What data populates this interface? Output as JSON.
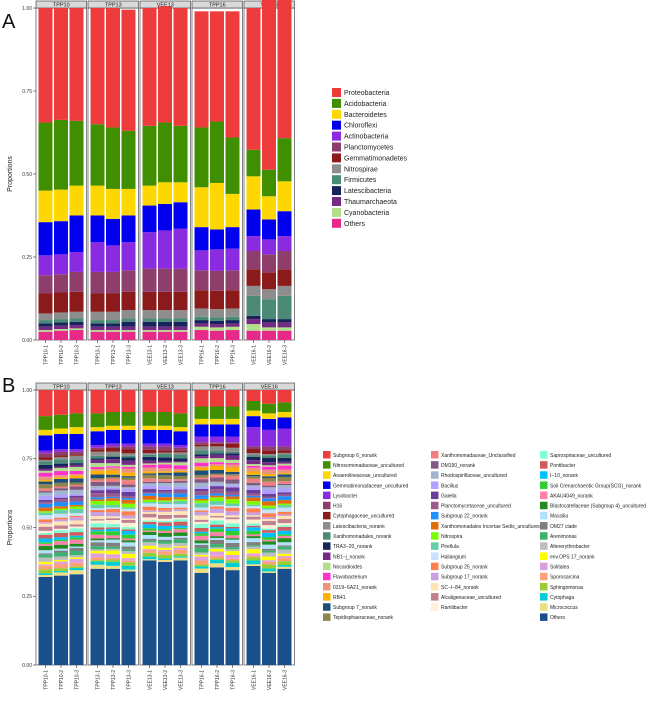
{
  "chart_data": [
    {
      "panel": "A",
      "type": "bar",
      "stacked": true,
      "facets": [
        "TPP10",
        "TPP13",
        "VEE13",
        "TPP16",
        "VEE16"
      ],
      "samples": [
        [
          "TPP10-1",
          "TPP10-2",
          "TPP10-3"
        ],
        [
          "TPP13-1",
          "TPP13-2",
          "TPP13-3"
        ],
        [
          "VEE13-1",
          "VEE13-2",
          "VEE13-3"
        ],
        [
          "TPP16-1",
          "TPP16-2",
          "TPP16-3"
        ],
        [
          "VEE16-1",
          "VEE16-2",
          "VEE16-3"
        ]
      ],
      "ylabel": "Proportions",
      "ylim": [
        0,
        1
      ],
      "yticks": [
        "0.00",
        "0.25",
        "0.50",
        "0.75",
        "1.00"
      ],
      "legend_position": "right",
      "series": [
        {
          "name": "Others",
          "color": "#e7298a",
          "values": [
            0.025,
            0.028,
            0.03,
            0.025,
            0.025,
            0.025,
            0.025,
            0.025,
            0.025,
            0.03,
            0.028,
            0.03,
            0.028,
            0.028,
            0.028
          ]
        },
        {
          "name": "Cyanobacteria",
          "color": "#b2df8a",
          "values": [
            0.005,
            0.005,
            0.005,
            0.005,
            0.005,
            0.005,
            0.005,
            0.005,
            0.005,
            0.01,
            0.01,
            0.01,
            0.02,
            0.01,
            0.01
          ]
        },
        {
          "name": "Thaumarchaeota",
          "color": "#762a83",
          "values": [
            0.01,
            0.01,
            0.01,
            0.01,
            0.01,
            0.01,
            0.01,
            0.01,
            0.01,
            0.01,
            0.01,
            0.01,
            0.015,
            0.015,
            0.015
          ]
        },
        {
          "name": "Latescibacteria",
          "color": "#17245c",
          "values": [
            0.01,
            0.01,
            0.01,
            0.01,
            0.01,
            0.015,
            0.015,
            0.015,
            0.015,
            0.01,
            0.01,
            0.01,
            0.01,
            0.01,
            0.01
          ]
        },
        {
          "name": "Firmicutes",
          "color": "#4b8a76",
          "values": [
            0.01,
            0.01,
            0.01,
            0.01,
            0.01,
            0.01,
            0.01,
            0.01,
            0.01,
            0.01,
            0.01,
            0.01,
            0.06,
            0.06,
            0.07
          ]
        },
        {
          "name": "Nitrospirae",
          "color": "#8d8d8d",
          "values": [
            0.02,
            0.02,
            0.02,
            0.025,
            0.025,
            0.025,
            0.025,
            0.025,
            0.025,
            0.025,
            0.025,
            0.025,
            0.03,
            0.03,
            0.03
          ]
        },
        {
          "name": "Gemmatimonadetes",
          "color": "#8b1a1a",
          "values": [
            0.06,
            0.06,
            0.06,
            0.055,
            0.055,
            0.055,
            0.055,
            0.055,
            0.055,
            0.055,
            0.055,
            0.055,
            0.05,
            0.05,
            0.05
          ]
        },
        {
          "name": "Planctomycetes",
          "color": "#8e3e6a",
          "values": [
            0.055,
            0.055,
            0.06,
            0.065,
            0.065,
            0.065,
            0.07,
            0.07,
            0.07,
            0.06,
            0.06,
            0.06,
            0.055,
            0.055,
            0.055
          ]
        },
        {
          "name": "Actinobacteria",
          "color": "#8a2be2",
          "values": [
            0.06,
            0.06,
            0.06,
            0.09,
            0.08,
            0.085,
            0.11,
            0.115,
            0.12,
            0.06,
            0.065,
            0.065,
            0.045,
            0.045,
            0.045
          ]
        },
        {
          "name": "Chloroflexi",
          "color": "#0000ee",
          "values": [
            0.1,
            0.1,
            0.11,
            0.08,
            0.08,
            0.08,
            0.08,
            0.08,
            0.08,
            0.07,
            0.06,
            0.065,
            0.08,
            0.06,
            0.075
          ]
        },
        {
          "name": "Bacteroidetes",
          "color": "#ffd700",
          "values": [
            0.095,
            0.095,
            0.09,
            0.09,
            0.09,
            0.08,
            0.06,
            0.065,
            0.06,
            0.12,
            0.14,
            0.1,
            0.1,
            0.07,
            0.09
          ]
        },
        {
          "name": "Acidobacteria",
          "color": "#3f8f00",
          "values": [
            0.205,
            0.21,
            0.195,
            0.185,
            0.185,
            0.175,
            0.18,
            0.18,
            0.17,
            0.18,
            0.185,
            0.17,
            0.08,
            0.08,
            0.13
          ]
        },
        {
          "name": "Proteobacteria",
          "color": "#ee3b3b",
          "values": [
            0.345,
            0.337,
            0.34,
            0.35,
            0.36,
            0.365,
            0.355,
            0.35,
            0.355,
            0.35,
            0.332,
            0.38,
            0.427,
            0.537,
            0.422
          ]
        }
      ],
      "legend_order": [
        "Proteobacteria",
        "Acidobacteria",
        "Bacteroidetes",
        "Chloroflexi",
        "Actinobacteria",
        "Planctomycetes",
        "Gemmatimonadetes",
        "Nitrospirae",
        "Firmicutes",
        "Latescibacteria",
        "Thaumarchaeota",
        "Cyanobacteria",
        "Others"
      ]
    },
    {
      "panel": "B",
      "type": "bar",
      "stacked": true,
      "facets": [
        "TPP10",
        "TPP13",
        "VEE13",
        "TPP16",
        "VEE16"
      ],
      "samples": [
        [
          "TPP10-1",
          "TPP10-2",
          "TPP10-3"
        ],
        [
          "TPP13-1",
          "TPP13-2",
          "TPP13-3"
        ],
        [
          "VEE13-1",
          "VEE13-2",
          "VEE13-3"
        ],
        [
          "TPP16-1",
          "TPP16-2",
          "TPP16-3"
        ],
        [
          "VEE16-1",
          "VEE16-2",
          "VEE16-3"
        ]
      ],
      "ylabel": "Proportions",
      "ylim": [
        0,
        1
      ],
      "yticks": [
        "0.00",
        "0.25",
        "0.50",
        "0.75",
        "1.00"
      ],
      "legend_position": "right",
      "others_values": [
        0.32,
        0.325,
        0.33,
        0.35,
        0.35,
        0.34,
        0.38,
        0.375,
        0.38,
        0.335,
        0.355,
        0.345,
        0.36,
        0.335,
        0.35
      ],
      "top_series": [
        {
          "name": "Subgroup 6_norank",
          "color": "#ee3b3b",
          "values": [
            0.095,
            0.09,
            0.085,
            0.085,
            0.08,
            0.08,
            0.08,
            0.08,
            0.085,
            0.06,
            0.06,
            0.06,
            0.04,
            0.05,
            0.045
          ]
        },
        {
          "name": "Nitrosomonadaceae_uncultured",
          "color": "#3f8f00",
          "values": [
            0.05,
            0.05,
            0.05,
            0.05,
            0.05,
            0.05,
            0.05,
            0.05,
            0.05,
            0.045,
            0.045,
            0.045,
            0.035,
            0.035,
            0.035
          ]
        },
        {
          "name": "Anaerolineaceae_uncultured",
          "color": "#ffd700",
          "values": [
            0.02,
            0.02,
            0.025,
            0.015,
            0.015,
            0.015,
            0.015,
            0.015,
            0.015,
            0.02,
            0.02,
            0.02,
            0.02,
            0.02,
            0.02
          ]
        },
        {
          "name": "Gemmatimonadaceae_uncultured",
          "color": "#0000ee",
          "values": [
            0.055,
            0.055,
            0.055,
            0.05,
            0.05,
            0.05,
            0.05,
            0.05,
            0.05,
            0.045,
            0.045,
            0.045,
            0.04,
            0.04,
            0.04
          ]
        },
        {
          "name": "Lysobacter",
          "color": "#8a2be2",
          "values": [
            0.01,
            0.01,
            0.01,
            0.01,
            0.01,
            0.01,
            0.01,
            0.01,
            0.01,
            0.02,
            0.02,
            0.02,
            0.07,
            0.06,
            0.065
          ]
        }
      ],
      "legend_order": [
        "Subgroup 6_norank",
        "Nitrosomonadaceae_uncultured",
        "Anaerolineaceae_uncultured",
        "Gemmatimonadaceae_uncultured",
        "Lysobacter",
        "H16",
        "Cytophagaceae_uncultured",
        "Latescibacteria_norank",
        "Xanthomonadales_norank",
        "TRA3−20_norank",
        "NB1−j_norank",
        "Nocardioides",
        "Flavobacterium",
        "0319−6A21_norank",
        "RB41",
        "Subgroup 7_norank",
        "Tepidisphaeraceae_norank",
        "Xanthomonadaceae_Unclassified",
        "DM190_norank",
        "Rhodospirillaceae_uncultured",
        "Bacillus",
        "Gaiella",
        "Planctomycetaceae_uncultured",
        "Subgroup 22_norank",
        "Xanthomonadales Incertae Sedis_uncultured",
        "Nitrospira",
        "Pirellula",
        "Haliangium",
        "Subgroup 25_norank",
        "Subgroup 17_norank",
        "SC−I−84_norank",
        "Alcaligenaceae_uncultured",
        "Ramlibacter",
        "Saprospiraceae_uncultured",
        "Pontibacter",
        "I−10_norank",
        "Soil Crenarchaeotic Group(SCG)_norank",
        "AKAU4049_norank",
        "Blastocatellaceae (Subgroup 4)_uncultured",
        "Massilia",
        "OM27 clade",
        "Arenimonas",
        "Altererythrobacter",
        "env.OPS 17_norank",
        "Solitalea",
        "Sporosarcina",
        "Sphingomonas",
        "Cytophaga",
        "Micrococcus",
        "Others"
      ],
      "legend_colors": [
        "#ee3b3b",
        "#3f8f00",
        "#ffd700",
        "#0000ee",
        "#8a2be2",
        "#8e3e6a",
        "#8b1a1a",
        "#8d8d8d",
        "#4b8a76",
        "#17245c",
        "#762a83",
        "#b2df8a",
        "#ff33cc",
        "#e9967a",
        "#ffb000",
        "#1f4e79",
        "#8b864e",
        "#f08080",
        "#7f5a83",
        "#9fb6cd",
        "#b0a0ff",
        "#6a3d9a",
        "#9a5b8c",
        "#1e90ff",
        "#e36c0a",
        "#7cfc00",
        "#66cdaa",
        "#c6e2ff",
        "#ff7f50",
        "#c7a0e0",
        "#ffe4b5",
        "#c08090",
        "#ffefd5",
        "#7fffd4",
        "#cd5c5c",
        "#00bfff",
        "#32cd32",
        "#ff82ab",
        "#228b22",
        "#b0e2ff",
        "#7f7f7f",
        "#3cb371",
        "#bebebe",
        "#ffff00",
        "#dda0dd",
        "#ffa07a",
        "#9acd32",
        "#00ced1",
        "#eedd82",
        "#19508c"
      ]
    }
  ],
  "labels": {
    "panel_a": "A",
    "panel_b": "B"
  }
}
